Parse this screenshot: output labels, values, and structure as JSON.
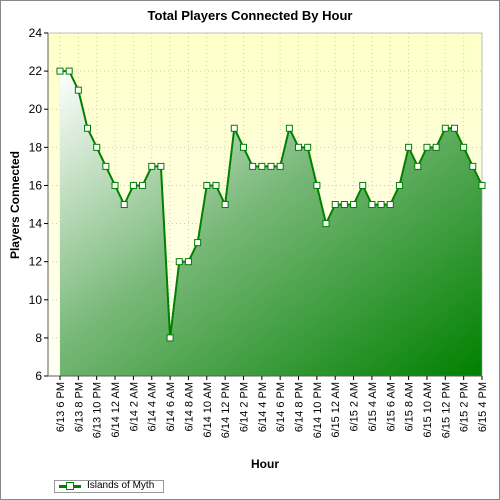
{
  "chart_data": {
    "type": "area",
    "title": "Total Players Connected By Hour",
    "xlabel": "Hour",
    "ylabel": "Players Connected",
    "ylim": [
      6,
      24
    ],
    "yticks": [
      6,
      8,
      10,
      12,
      14,
      16,
      18,
      20,
      22,
      24
    ],
    "grid": true,
    "legend_position": "bottom-left",
    "categories": [
      "6/13 6 PM",
      "6/13 7 PM",
      "6/13 8 PM",
      "6/13 9 PM",
      "6/13 10 PM",
      "6/13 11 PM",
      "6/14 12 AM",
      "6/14 1 AM",
      "6/14 2 AM",
      "6/14 3 AM",
      "6/14 4 AM",
      "6/14 5 AM",
      "6/14 6 AM",
      "6/14 7 AM",
      "6/14 8 AM",
      "6/14 9 AM",
      "6/14 10 AM",
      "6/14 11 AM",
      "6/14 12 PM",
      "6/14 1 PM",
      "6/14 2 PM",
      "6/14 3 PM",
      "6/14 4 PM",
      "6/14 5 PM",
      "6/14 6 PM",
      "6/14 7 PM",
      "6/14 8 PM",
      "6/14 9 PM",
      "6/14 10 PM",
      "6/14 11 PM",
      "6/15 12 AM",
      "6/15 1 AM",
      "6/15 2 AM",
      "6/15 3 AM",
      "6/15 4 AM",
      "6/15 5 AM",
      "6/15 6 AM",
      "6/15 7 AM",
      "6/15 8 AM",
      "6/15 9 AM",
      "6/15 10 AM",
      "6/15 11 AM",
      "6/15 12 PM",
      "6/15 1 PM",
      "6/15 2 PM",
      "6/15 3 PM",
      "6/15 4 PM"
    ],
    "x_tick_labels": [
      "6/13 6 PM",
      "6/13 8 PM",
      "6/13 10 PM",
      "6/14 12 AM",
      "6/14 2 AM",
      "6/14 4 AM",
      "6/14 6 AM",
      "6/14 8 AM",
      "6/14 10 AM",
      "6/14 12 PM",
      "6/14 2 PM",
      "6/14 4 PM",
      "6/14 6 PM",
      "6/14 8 PM",
      "6/14 10 PM",
      "6/15 12 AM",
      "6/15 2 AM",
      "6/15 4 AM",
      "6/15 6 AM",
      "6/15 8 AM",
      "6/15 10 AM",
      "6/15 12 PM",
      "6/15 2 PM",
      "6/15 4 PM"
    ],
    "series": [
      {
        "name": "Islands of Myth",
        "color": "#008000",
        "values": [
          22,
          22,
          21,
          19,
          18,
          17,
          16,
          15,
          16,
          16,
          17,
          17,
          8,
          12,
          12,
          13,
          16,
          16,
          15,
          19,
          18,
          17,
          17,
          17,
          17,
          19,
          18,
          18,
          16,
          14,
          15,
          15,
          15,
          16,
          15,
          15,
          15,
          16,
          18,
          17,
          18,
          18,
          19,
          19,
          18,
          17,
          16
        ]
      }
    ],
    "colors": {
      "plot_background_top": "#ffffcc",
      "plot_background_bottom": "#ffffee",
      "fill_light": "#ffffff",
      "fill_dark": "#008000",
      "line": "#008000",
      "marker_fill": "#ffffff"
    }
  }
}
